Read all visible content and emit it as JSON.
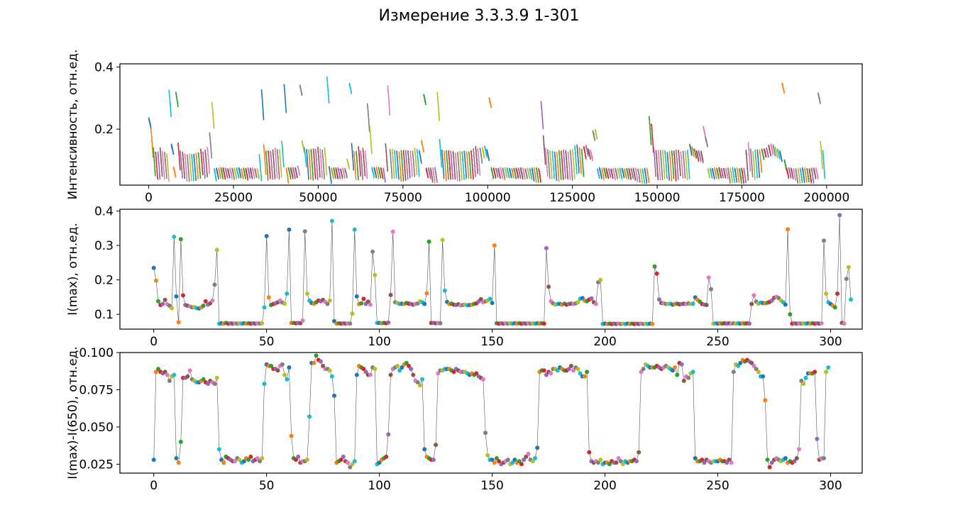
{
  "title": "Измерение 3.3.3.9 1-301",
  "palette": [
    "#1f77b4",
    "#ff7f0e",
    "#2ca02c",
    "#d62728",
    "#9467bd",
    "#8c564b",
    "#e377c2",
    "#7f7f7f",
    "#bcbd22",
    "#17becf"
  ],
  "chart_data": [
    {
      "type": "line",
      "title": "",
      "xlabel": "",
      "ylabel": "Интенсивность, отн.ед.",
      "xlim": [
        -8500,
        210500
      ],
      "ylim": [
        0.02,
        0.41
      ],
      "xticks": [
        0,
        25000,
        50000,
        75000,
        100000,
        125000,
        150000,
        175000,
        200000
      ],
      "xticklabels": [
        "0",
        "25000",
        "50000",
        "75000",
        "100000",
        "125000",
        "150000",
        "175000",
        "200000"
      ],
      "yticks": [
        0.2,
        0.4
      ],
      "yticklabels": [
        "0.2",
        "0.4"
      ],
      "grid": false,
      "legend": "none",
      "description_of_series": "301 short spectral traces, each spanning ~650 x-units, one per measurement, colored cyclically",
      "trace_x_start": 0,
      "trace_x_step": 665,
      "trace_x_span": 650,
      "peak_values_ref": "chart_data.1.values",
      "base_values_ref": "chart_data.2.values"
    },
    {
      "type": "scatter",
      "title": "",
      "xlabel": "",
      "ylabel": "I(max), отн.ед.",
      "xlim": [
        -15,
        314
      ],
      "ylim": [
        0.057,
        0.405
      ],
      "xticks": [
        0,
        50,
        100,
        150,
        200,
        250,
        300
      ],
      "xticklabels": [
        "0",
        "50",
        "100",
        "150",
        "200",
        "250",
        "300"
      ],
      "yticks": [
        0.1,
        0.2,
        0.3,
        0.4
      ],
      "yticklabels": [
        "0.1",
        "0.2",
        "0.3",
        "0.4"
      ],
      "grid": false,
      "legend": "none",
      "connecting_line_color": "#555555",
      "x": "index 0..300",
      "values": [
        0.235,
        0.198,
        0.138,
        0.127,
        0.13,
        0.142,
        0.129,
        0.125,
        0.118,
        0.325,
        0.152,
        0.077,
        0.318,
        0.155,
        0.127,
        0.125,
        0.123,
        0.12,
        0.121,
        0.118,
        0.117,
        0.12,
        0.125,
        0.138,
        0.128,
        0.132,
        0.14,
        0.186,
        0.287,
        0.073,
        0.074,
        0.073,
        0.075,
        0.073,
        0.074,
        0.073,
        0.074,
        0.073,
        0.074,
        0.073,
        0.074,
        0.073,
        0.074,
        0.073,
        0.074,
        0.073,
        0.074,
        0.073,
        0.074,
        0.12,
        0.327,
        0.149,
        0.127,
        0.13,
        0.132,
        0.135,
        0.14,
        0.134,
        0.131,
        0.16,
        0.346,
        0.075,
        0.075,
        0.074,
        0.075,
        0.074,
        0.082,
        0.341,
        0.16,
        0.14,
        0.133,
        0.131,
        0.135,
        0.14,
        0.138,
        0.142,
        0.136,
        0.13,
        0.14,
        0.371,
        0.08,
        0.073,
        0.074,
        0.073,
        0.074,
        0.073,
        0.074,
        0.073,
        0.102,
        0.346,
        0.152,
        0.13,
        0.132,
        0.145,
        0.13,
        0.137,
        0.128,
        0.282,
        0.214,
        0.075,
        0.075,
        0.074,
        0.075,
        0.074,
        0.076,
        0.156,
        0.34,
        0.135,
        0.133,
        0.13,
        0.131,
        0.13,
        0.133,
        0.131,
        0.13,
        0.128,
        0.13,
        0.132,
        0.138,
        0.135,
        0.13,
        0.161,
        0.311,
        0.075,
        0.075,
        0.074,
        0.075,
        0.074,
        0.316,
        0.169,
        0.136,
        0.13,
        0.131,
        0.128,
        0.127,
        0.129,
        0.126,
        0.127,
        0.128,
        0.126,
        0.127,
        0.128,
        0.13,
        0.132,
        0.137,
        0.144,
        0.135,
        0.138,
        0.14,
        0.145,
        0.133,
        0.3,
        0.074,
        0.073,
        0.074,
        0.073,
        0.074,
        0.073,
        0.074,
        0.073,
        0.074,
        0.073,
        0.074,
        0.073,
        0.074,
        0.073,
        0.074,
        0.073,
        0.074,
        0.073,
        0.074,
        0.073,
        0.074,
        0.073,
        0.292,
        0.18,
        0.138,
        0.132,
        0.128,
        0.13,
        0.13,
        0.128,
        0.131,
        0.128,
        0.13,
        0.131,
        0.13,
        0.132,
        0.135,
        0.145,
        0.147,
        0.14,
        0.138,
        0.143,
        0.146,
        0.135,
        0.13,
        0.193,
        0.2,
        0.072,
        0.073,
        0.072,
        0.073,
        0.072,
        0.073,
        0.072,
        0.073,
        0.072,
        0.073,
        0.072,
        0.073,
        0.072,
        0.073,
        0.072,
        0.073,
        0.072,
        0.073,
        0.072,
        0.073,
        0.072,
        0.073,
        0.072,
        0.239,
        0.218,
        0.143,
        0.133,
        0.132,
        0.13,
        0.13,
        0.131,
        0.128,
        0.13,
        0.131,
        0.129,
        0.13,
        0.131,
        0.13,
        0.132,
        0.13,
        0.131,
        0.149,
        0.142,
        0.137,
        0.13,
        0.128,
        0.127,
        0.207,
        0.173,
        0.073,
        0.074,
        0.073,
        0.074,
        0.073,
        0.074,
        0.073,
        0.074,
        0.073,
        0.074,
        0.073,
        0.074,
        0.073,
        0.074,
        0.073,
        0.074,
        0.073,
        0.13,
        0.155,
        0.137,
        0.131,
        0.134,
        0.133,
        0.132,
        0.134,
        0.136,
        0.14,
        0.148,
        0.151,
        0.147,
        0.14,
        0.135,
        0.128,
        0.347,
        0.1,
        0.073,
        0.074,
        0.073,
        0.074,
        0.073,
        0.074,
        0.073,
        0.074,
        0.073,
        0.074,
        0.073,
        0.074,
        0.073,
        0.074,
        0.314,
        0.16,
        0.135,
        0.13,
        0.125,
        0.12,
        0.16,
        0.388,
        0.075,
        0.073,
        0.203,
        0.237,
        0.143
      ]
    },
    {
      "type": "scatter",
      "title": "",
      "xlabel": "",
      "ylabel": "I(max)-I(650), отн.ед.",
      "xlim": [
        -15,
        314
      ],
      "ylim": [
        0.019,
        0.1
      ],
      "xticks": [
        0,
        50,
        100,
        150,
        200,
        250,
        300
      ],
      "xticklabels": [
        "0",
        "50",
        "100",
        "150",
        "200",
        "250",
        "300"
      ],
      "yticks": [
        0.025,
        0.05,
        0.075,
        0.1
      ],
      "yticklabels": [
        "0.025",
        "0.050",
        "0.075",
        "0.100"
      ],
      "grid": false,
      "legend": "none",
      "connecting_line_color": "#555555",
      "x": "index 0..300",
      "values": [
        0.028,
        0.087,
        0.089,
        0.087,
        0.086,
        0.087,
        0.085,
        0.081,
        0.084,
        0.085,
        0.029,
        0.026,
        0.04,
        0.083,
        0.083,
        0.084,
        0.088,
        0.082,
        0.081,
        0.08,
        0.08,
        0.081,
        0.082,
        0.08,
        0.079,
        0.081,
        0.08,
        0.079,
        0.083,
        0.035,
        0.028,
        0.026,
        0.03,
        0.029,
        0.028,
        0.027,
        0.027,
        0.029,
        0.028,
        0.026,
        0.027,
        0.029,
        0.028,
        0.03,
        0.027,
        0.028,
        0.029,
        0.027,
        0.029,
        0.079,
        0.092,
        0.091,
        0.091,
        0.089,
        0.089,
        0.088,
        0.091,
        0.092,
        0.085,
        0.082,
        0.09,
        0.044,
        0.029,
        0.028,
        0.03,
        0.026,
        0.027,
        0.027,
        0.028,
        0.057,
        0.093,
        0.093,
        0.098,
        0.095,
        0.094,
        0.091,
        0.089,
        0.089,
        0.088,
        0.084,
        0.071,
        0.026,
        0.027,
        0.028,
        0.03,
        0.027,
        0.026,
        0.023,
        0.025,
        0.027,
        0.085,
        0.091,
        0.09,
        0.089,
        0.087,
        0.085,
        0.085,
        0.09,
        0.089,
        0.025,
        0.026,
        0.028,
        0.029,
        0.03,
        0.045,
        0.085,
        0.089,
        0.09,
        0.091,
        0.088,
        0.09,
        0.092,
        0.093,
        0.091,
        0.089,
        0.085,
        0.081,
        0.08,
        0.078,
        0.082,
        0.035,
        0.03,
        0.029,
        0.028,
        0.028,
        0.038,
        0.086,
        0.088,
        0.088,
        0.089,
        0.089,
        0.089,
        0.088,
        0.087,
        0.089,
        0.088,
        0.087,
        0.087,
        0.087,
        0.086,
        0.085,
        0.086,
        0.085,
        0.086,
        0.084,
        0.083,
        0.082,
        0.046,
        0.031,
        0.028,
        0.028,
        0.026,
        0.029,
        0.027,
        0.025,
        0.026,
        0.027,
        0.028,
        0.025,
        0.026,
        0.028,
        0.026,
        0.027,
        0.025,
        0.028,
        0.03,
        0.032,
        0.028,
        0.027,
        0.029,
        0.036,
        0.087,
        0.088,
        0.088,
        0.085,
        0.087,
        0.086,
        0.089,
        0.089,
        0.088,
        0.09,
        0.089,
        0.088,
        0.088,
        0.089,
        0.091,
        0.088,
        0.09,
        0.089,
        0.086,
        0.084,
        0.084,
        0.087,
        0.033,
        0.027,
        0.026,
        0.027,
        0.026,
        0.028,
        0.025,
        0.026,
        0.026,
        0.025,
        0.027,
        0.026,
        0.026,
        0.029,
        0.027,
        0.025,
        0.027,
        0.026,
        0.027,
        0.027,
        0.028,
        0.027,
        0.033,
        0.087,
        0.089,
        0.092,
        0.091,
        0.09,
        0.09,
        0.09,
        0.091,
        0.09,
        0.089,
        0.09,
        0.091,
        0.09,
        0.089,
        0.088,
        0.09,
        0.085,
        0.093,
        0.092,
        0.081,
        0.084,
        0.083,
        0.086,
        0.087,
        0.029,
        0.027,
        0.027,
        0.028,
        0.026,
        0.028,
        0.027,
        0.026,
        0.027,
        0.027,
        0.027,
        0.028,
        0.027,
        0.027,
        0.026,
        0.028,
        0.026,
        0.087,
        0.092,
        0.091,
        0.093,
        0.095,
        0.094,
        0.095,
        0.094,
        0.093,
        0.091,
        0.089,
        0.087,
        0.084,
        0.084,
        0.068,
        0.028,
        0.023,
        0.026,
        0.028,
        0.029,
        0.028,
        0.027,
        0.028,
        0.029,
        0.026,
        0.027,
        0.026,
        0.027,
        0.029,
        0.035,
        0.081,
        0.079,
        0.083,
        0.086,
        0.086,
        0.086,
        0.087,
        0.042,
        0.028,
        0.029,
        0.029,
        0.087,
        0.09
      ]
    }
  ]
}
